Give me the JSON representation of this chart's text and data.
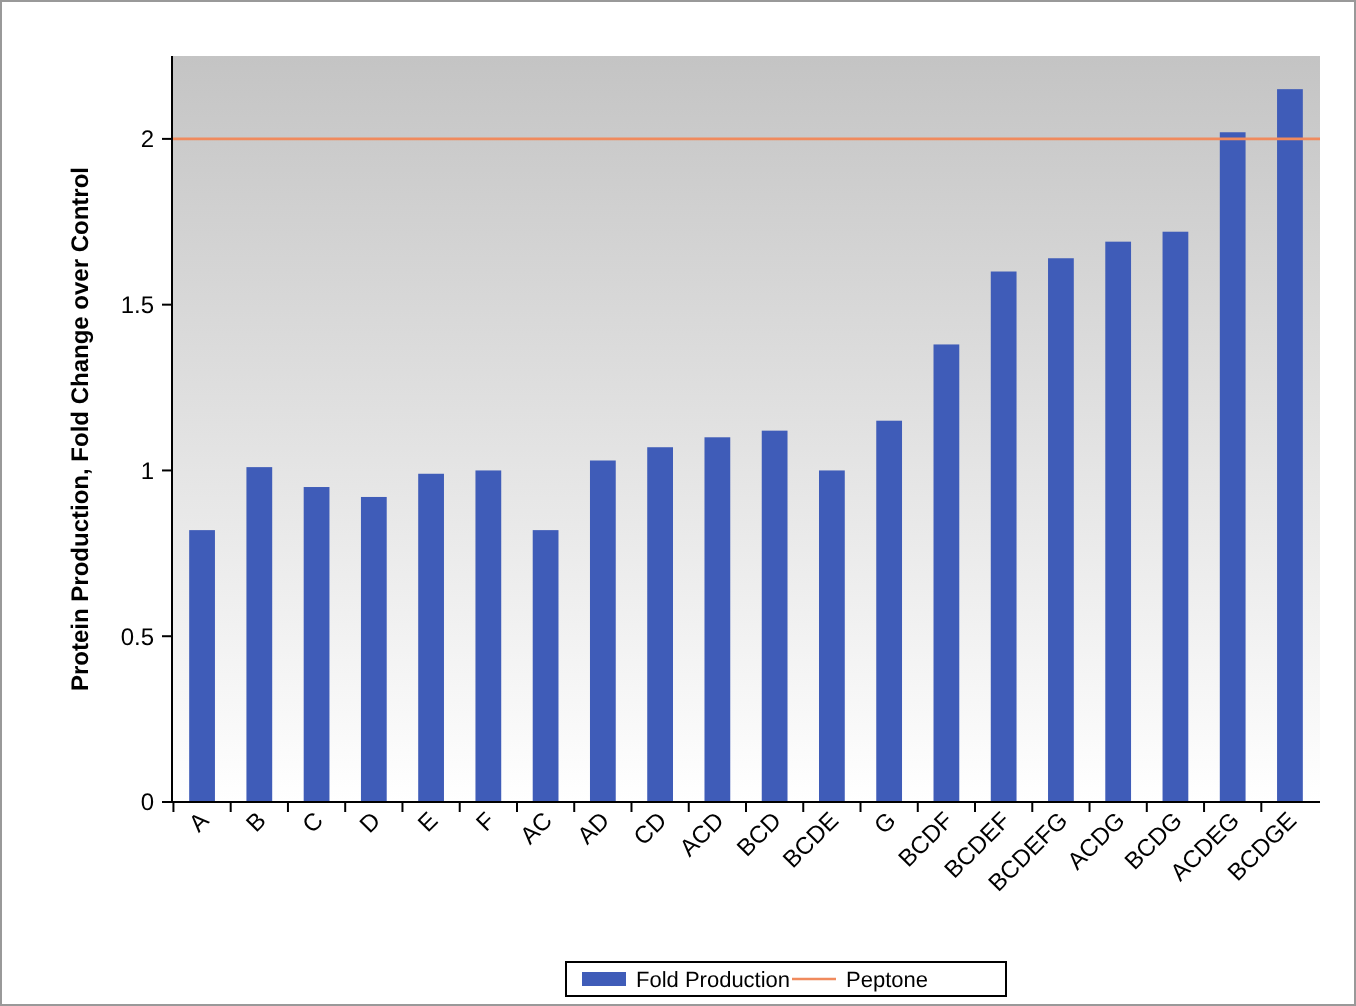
{
  "chart_data": {
    "type": "bar",
    "ylabel": "Protein Production, Fold Change over Control",
    "categories": [
      "A",
      "B",
      "C",
      "D",
      "E",
      "F",
      "AC",
      "AD",
      "CD",
      "ACD",
      "BCD",
      "BCDE",
      "G",
      "BCDF",
      "BCDEF",
      "BCDEFG",
      "ACDG",
      "BCDG",
      "ACDEG",
      "BCDGE"
    ],
    "series": [
      {
        "name": "Fold Production",
        "color": "#3f5cb8",
        "values": [
          0.82,
          1.01,
          0.95,
          0.92,
          0.99,
          1.0,
          0.82,
          1.03,
          1.07,
          1.1,
          1.12,
          1.0,
          1.15,
          1.38,
          1.6,
          1.64,
          1.69,
          1.72,
          2.02,
          2.15
        ]
      }
    ],
    "ylim": [
      0,
      2.25
    ],
    "yticks": [
      0,
      0.5,
      1,
      1.5,
      2
    ],
    "grid": false,
    "legend": "bottom",
    "ref_lines": [
      {
        "axis": "y",
        "value": 2,
        "label": "Peptone",
        "color": "#f08a5d"
      }
    ]
  }
}
